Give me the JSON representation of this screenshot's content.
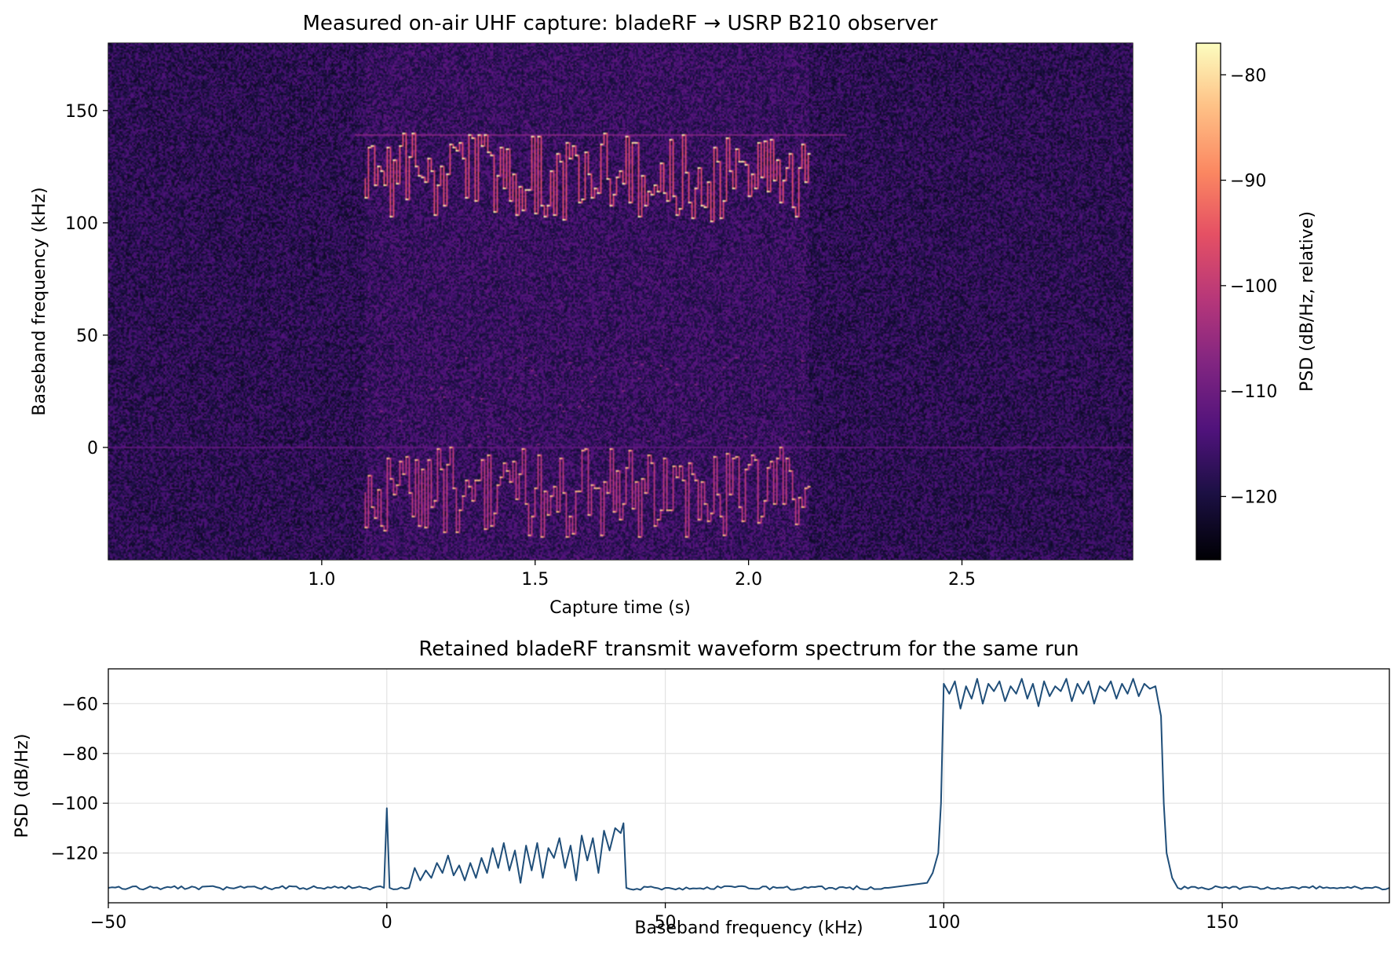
{
  "chart_data": [
    {
      "type": "heatmap",
      "title": "Measured on-air UHF capture: bladeRF → USRP B210 observer",
      "xlabel": "Capture time (s)",
      "ylabel": "Baseband frequency (kHz)",
      "xlim": [
        0.5,
        2.9
      ],
      "ylim": [
        -50,
        180
      ],
      "xticks": [
        1.0,
        1.5,
        2.0,
        2.5
      ],
      "xtick_labels": [
        "1.0",
        "1.5",
        "2.0",
        "2.5"
      ],
      "yticks": [
        0,
        50,
        100,
        150
      ],
      "ytick_labels": [
        "0",
        "50",
        "100",
        "150"
      ],
      "colormap": "magma",
      "colorbar": {
        "label": "PSD (dB/Hz, relative)",
        "range": [
          -126,
          -77
        ],
        "ticks": [
          -120,
          -110,
          -100,
          -90,
          -80
        ],
        "tick_labels": [
          "−120",
          "−110",
          "−100",
          "−90",
          "−80"
        ]
      },
      "noise_floor_db": -118,
      "transmission": {
        "start_s": 1.1,
        "end_s": 2.14
      },
      "components": [
        {
          "name": "FSK tone hops",
          "freq_range_khz": [
            100,
            140
          ],
          "time_range_s": [
            1.1,
            2.14
          ],
          "peak_db": -78
        },
        {
          "name": "upper edge line",
          "freq_khz": 139,
          "time_range_s": [
            1.08,
            2.23
          ],
          "level_db": -108
        },
        {
          "name": "low-band tone hops",
          "freq_range_khz": [
            -40,
            0
          ],
          "time_range_s": [
            1.1,
            2.14
          ],
          "peak_db": -82
        },
        {
          "name": "faint harmonic tones",
          "freq_range_khz": [
            0,
            40
          ],
          "time_range_s": [
            1.1,
            2.14
          ],
          "level_db": -106
        },
        {
          "name": "DC line",
          "freq_khz": 0,
          "time_range_s": [
            0.5,
            2.9
          ],
          "level_db": -112
        }
      ]
    },
    {
      "type": "line",
      "title": "Retained bladeRF transmit waveform spectrum for the same run",
      "xlabel": "Baseband frequency (kHz)",
      "ylabel": "PSD (dB/Hz)",
      "xlim": [
        -50,
        180
      ],
      "ylim": [
        -140,
        -46
      ],
      "xticks": [
        -50,
        0,
        50,
        100,
        150
      ],
      "xtick_labels": [
        "−50",
        "0",
        "50",
        "100",
        "150"
      ],
      "yticks": [
        -120,
        -100,
        -80,
        -60
      ],
      "ytick_labels": [
        "−120",
        "−100",
        "−80",
        "−60"
      ],
      "grid": true,
      "line_color": "#1f4e79",
      "series": [
        {
          "x": [
            -50,
            -40,
            -30,
            -20,
            -10,
            -0.5,
            0,
            0.5,
            4,
            5,
            6,
            7,
            8,
            9,
            10,
            11,
            12,
            13,
            14,
            15,
            16,
            17,
            18,
            19,
            20,
            21,
            22,
            23,
            24,
            25,
            26,
            27,
            28,
            29,
            30,
            31,
            32,
            33,
            34,
            35,
            36,
            37,
            38,
            39,
            40,
            41,
            42,
            42.5,
            43,
            50,
            60,
            70,
            80,
            90,
            97,
            98,
            99,
            99.5,
            100,
            101,
            102,
            103,
            104,
            105,
            106,
            107,
            108,
            109,
            110,
            111,
            112,
            113,
            114,
            115,
            116,
            117,
            118,
            119,
            120,
            121,
            122,
            123,
            124,
            125,
            126,
            127,
            128,
            129,
            130,
            131,
            132,
            133,
            134,
            135,
            136,
            137,
            138,
            139,
            139.5,
            140,
            141,
            142,
            150,
            160,
            170,
            180
          ],
          "y": [
            -134,
            -134,
            -134,
            -134,
            -134,
            -134,
            -102,
            -134,
            -134,
            -126,
            -131,
            -127,
            -130,
            -124,
            -128,
            -121,
            -129,
            -125,
            -131,
            -124,
            -130,
            -122,
            -128,
            -118,
            -126,
            -116,
            -127,
            -119,
            -132,
            -117,
            -127,
            -116,
            -130,
            -118,
            -122,
            -114,
            -126,
            -117,
            -131,
            -113,
            -123,
            -114,
            -128,
            -111,
            -119,
            -110,
            -112,
            -108,
            -134,
            -134,
            -134,
            -134,
            -134,
            -134,
            -132,
            -128,
            -120,
            -100,
            -52,
            -56,
            -51,
            -62,
            -53,
            -58,
            -50,
            -60,
            -52,
            -55,
            -51,
            -59,
            -53,
            -56,
            -50,
            -58,
            -52,
            -61,
            -51,
            -57,
            -53,
            -55,
            -50,
            -59,
            -52,
            -56,
            -51,
            -60,
            -53,
            -55,
            -51,
            -58,
            -52,
            -56,
            -50,
            -57,
            -52,
            -54,
            -53,
            -65,
            -100,
            -120,
            -130,
            -134,
            -134,
            -134,
            -134,
            -134
          ]
        }
      ]
    }
  ]
}
